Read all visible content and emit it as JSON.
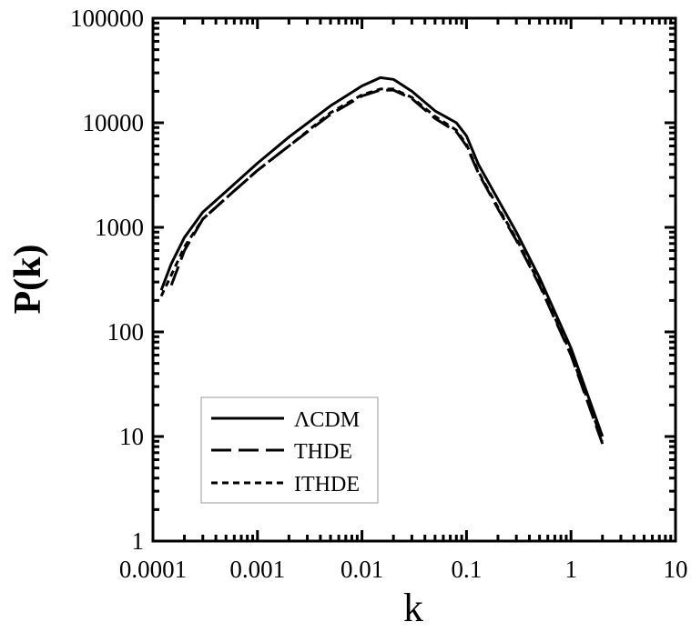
{
  "chart_data": {
    "type": "line",
    "xlabel": "k",
    "ylabel": "P(k)",
    "x_scale": "log",
    "y_scale": "log",
    "xlim": [
      0.0001,
      10
    ],
    "ylim": [
      1,
      100000
    ],
    "grid": false,
    "legend_position": "bottom-left",
    "x_ticks": [
      "0.0001",
      "0.001",
      "0.01",
      "0.1",
      "1",
      "10"
    ],
    "y_ticks": [
      "1",
      "10",
      "100",
      "1000",
      "10000",
      "100000"
    ],
    "series": [
      {
        "name": "ΛCDM",
        "style": "solid",
        "color": "#000000",
        "x": [
          0.00012,
          0.00015,
          0.0002,
          0.0003,
          0.0005,
          0.001,
          0.002,
          0.005,
          0.01,
          0.015,
          0.02,
          0.03,
          0.05,
          0.08,
          0.1,
          0.13,
          0.2,
          0.3,
          0.5,
          1,
          2
        ],
        "y": [
          250,
          450,
          800,
          1400,
          2200,
          4100,
          7300,
          14500,
          22500,
          27000,
          26000,
          20000,
          13000,
          10000,
          7500,
          4000,
          1850,
          900,
          330,
          70,
          10
        ]
      },
      {
        "name": "THDE",
        "style": "long-dash",
        "color": "#000000",
        "x": [
          0.00015,
          0.0002,
          0.0003,
          0.0005,
          0.001,
          0.002,
          0.005,
          0.01,
          0.015,
          0.02,
          0.03,
          0.05,
          0.08,
          0.1,
          0.13,
          0.2,
          0.3,
          0.5,
          1,
          2
        ],
        "y": [
          280,
          600,
          1200,
          1900,
          3500,
          6000,
          12000,
          18000,
          20500,
          20500,
          17000,
          11000,
          8200,
          6000,
          3300,
          1500,
          750,
          280,
          60,
          8.5
        ]
      },
      {
        "name": "ITHDE",
        "style": "short-dash",
        "color": "#000000",
        "x": [
          0.00012,
          0.00015,
          0.0002,
          0.0003,
          0.0005,
          0.001,
          0.002,
          0.005,
          0.01,
          0.015,
          0.02,
          0.03,
          0.05,
          0.08,
          0.1,
          0.13,
          0.2,
          0.3,
          0.5,
          1,
          2
        ],
        "y": [
          220,
          350,
          650,
          1200,
          1900,
          3500,
          6000,
          12500,
          18500,
          21000,
          21000,
          17500,
          11500,
          8500,
          6200,
          3400,
          1550,
          780,
          290,
          62,
          9
        ]
      }
    ]
  }
}
